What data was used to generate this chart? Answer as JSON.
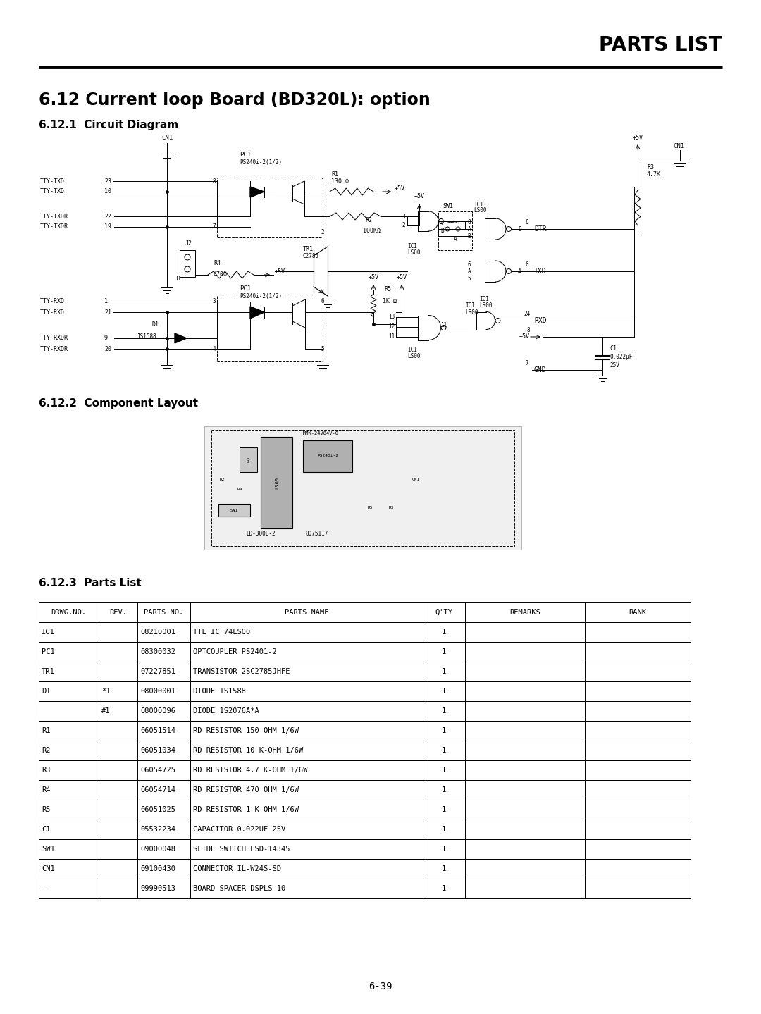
{
  "page_title": "PARTS LIST",
  "section_title": "6.12 Current loop Board (BD320L): option",
  "subsection1": "6.12.1  Circuit Diagram",
  "subsection2": "6.12.2  Component Layout",
  "subsection3": "6.12.3  Parts List",
  "page_number": "6-39",
  "table_headers": [
    "DRWG.NO.",
    "REV.",
    "PARTS NO.",
    "PARTS NAME",
    "Q'TY",
    "REMARKS",
    "RANK"
  ],
  "table_rows": [
    [
      "IC1",
      "",
      "08210001",
      "TTL IC 74LS00",
      "1",
      "",
      ""
    ],
    [
      "PC1",
      "",
      "08300032",
      "OPTCOUPLER PS2401-2",
      "1",
      "",
      ""
    ],
    [
      "TR1",
      "",
      "07227851",
      "TRANSISTOR 2SC2785JHFE",
      "1",
      "",
      ""
    ],
    [
      "D1",
      "*1",
      "08000001",
      "DIODE 1S1588",
      "1",
      "",
      ""
    ],
    [
      "",
      "#1",
      "08000096",
      "DIODE 1S2076A*A",
      "1",
      "",
      ""
    ],
    [
      "R1",
      "",
      "06051514",
      "RD RESISTOR 150 OHM 1/6W",
      "1",
      "",
      ""
    ],
    [
      "R2",
      "",
      "06051034",
      "RD RESISTOR 10 K-OHM 1/6W",
      "1",
      "",
      ""
    ],
    [
      "R3",
      "",
      "06054725",
      "RD RESISTOR 4.7 K-OHM 1/6W",
      "1",
      "",
      ""
    ],
    [
      "R4",
      "",
      "06054714",
      "RD RESISTOR 470 OHM 1/6W",
      "1",
      "",
      ""
    ],
    [
      "R5",
      "",
      "06051025",
      "RD RESISTOR 1 K-OHM 1/6W",
      "1",
      "",
      ""
    ],
    [
      "C1",
      "",
      "05532234",
      "CAPACITOR 0.022UF 25V",
      "1",
      "",
      ""
    ],
    [
      "SW1",
      "",
      "09000048",
      "SLIDE SWITCH ESD-14345",
      "1",
      "",
      ""
    ],
    [
      "CN1",
      "",
      "09100430",
      "CONNECTOR IL-W24S-SD",
      "1",
      "",
      ""
    ],
    [
      "-",
      "",
      "09990513",
      "BOARD SPACER DSPLS-10",
      "1",
      "",
      ""
    ]
  ],
  "bg_color": "#ffffff",
  "text_color": "#000000"
}
